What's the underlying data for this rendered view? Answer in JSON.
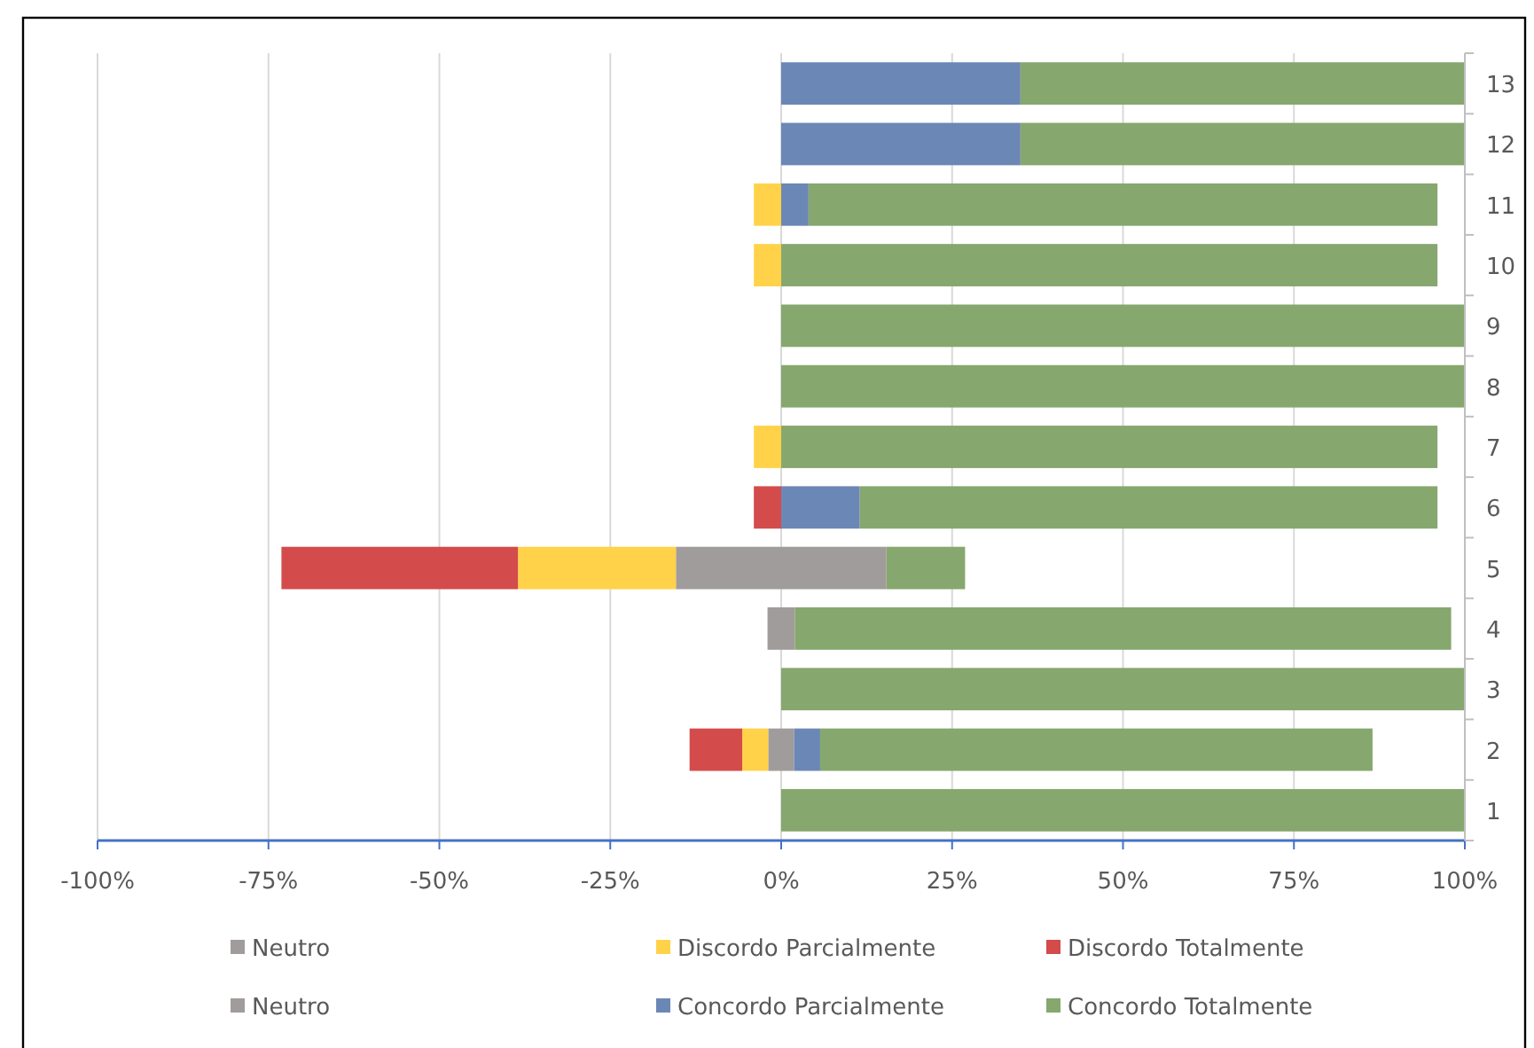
{
  "chart_data": {
    "type": "bar",
    "orientation": "horizontal",
    "stacked": true,
    "categories": [
      "13",
      "12",
      "11",
      "10",
      "9",
      "8",
      "7",
      "6",
      "5",
      "4",
      "3",
      "2",
      "1"
    ],
    "series": [
      {
        "name": "Neutro",
        "color": "#a09c9b",
        "values": [
          0,
          0,
          0,
          0,
          0,
          0,
          0,
          0,
          -15.4,
          -2,
          0,
          -1.9,
          0
        ]
      },
      {
        "name": "Discordo Parcialmente",
        "color": "#ffd24a",
        "values": [
          0,
          0,
          -4,
          -4,
          0,
          0,
          -4,
          0,
          -23.1,
          0,
          0,
          -3.8,
          0
        ]
      },
      {
        "name": "Discordo Totalmente",
        "color": "#d44b4b",
        "values": [
          0,
          0,
          0,
          0,
          0,
          0,
          0,
          -4,
          -34.6,
          0,
          0,
          -7.7,
          0
        ]
      },
      {
        "name": "Neutro",
        "color": "#a09c9b",
        "values": [
          0,
          0,
          0,
          0,
          0,
          0,
          0,
          0,
          15.4,
          2,
          0,
          1.9,
          0
        ]
      },
      {
        "name": "Concordo Parcialmente",
        "color": "#6b87b5",
        "values": [
          35,
          35,
          4,
          0,
          0,
          0,
          0,
          11.5,
          0,
          0,
          0,
          3.8,
          0
        ]
      },
      {
        "name": "Concordo Totalmente",
        "color": "#86a76e",
        "values": [
          65,
          65,
          92,
          96,
          100,
          100,
          96,
          84.5,
          11.5,
          96,
          100,
          80.8,
          100
        ]
      }
    ],
    "xlim": [
      -100,
      100
    ],
    "xticks": [
      {
        "value": -100,
        "label": "-100%"
      },
      {
        "value": -75,
        "label": "-75%"
      },
      {
        "value": -50,
        "label": "-50%"
      },
      {
        "value": -25,
        "label": "-25%"
      },
      {
        "value": 0,
        "label": "0%"
      },
      {
        "value": 25,
        "label": "25%"
      },
      {
        "value": 50,
        "label": "50%"
      },
      {
        "value": 75,
        "label": "75%"
      },
      {
        "value": 100,
        "label": "100%"
      }
    ],
    "grid": "x",
    "legend": "bottom"
  }
}
